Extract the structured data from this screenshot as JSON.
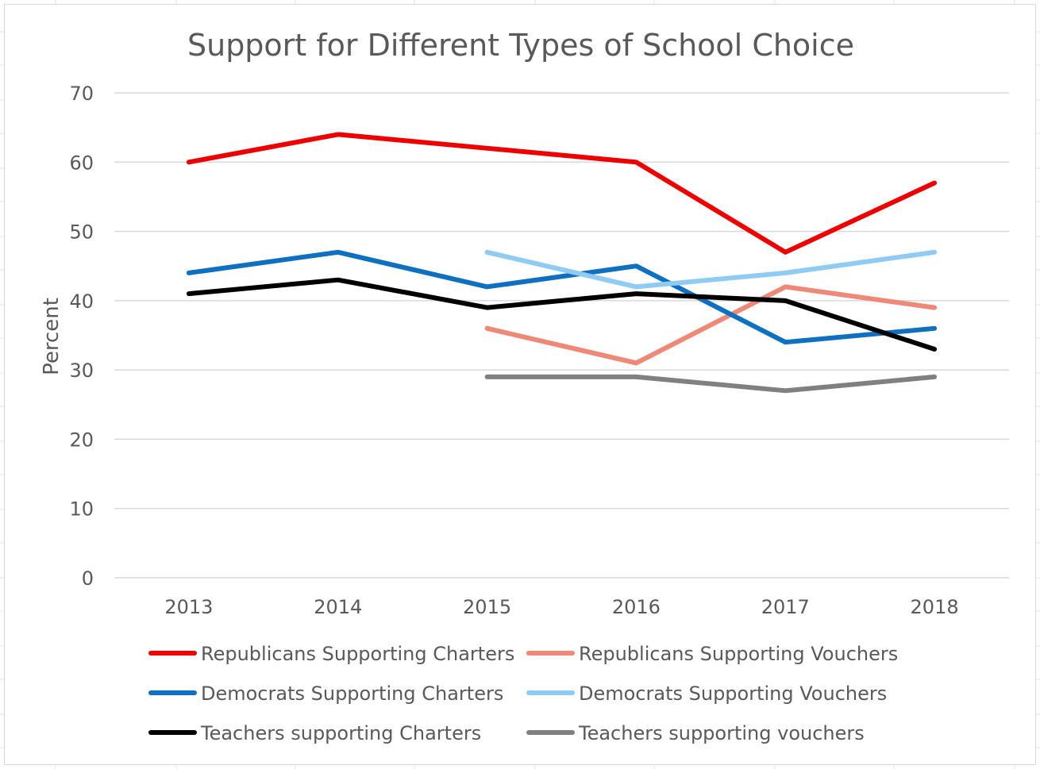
{
  "chart_data": {
    "type": "line",
    "title": "Support for Different Types of School Choice",
    "xlabel": "",
    "ylabel": "Percent",
    "x": [
      "2013",
      "2014",
      "2015",
      "2016",
      "2017",
      "2018"
    ],
    "ylim": [
      0,
      70
    ],
    "yticks": [
      0,
      10,
      20,
      30,
      40,
      50,
      60,
      70
    ],
    "grid": "horizontal",
    "legend_position": "bottom",
    "series": [
      {
        "name": "Republicans Supporting Charters",
        "color": "#ee0000",
        "values": [
          60,
          64,
          62,
          60,
          47,
          57
        ]
      },
      {
        "name": "Republicans Supporting Vouchers",
        "color": "#f08878",
        "values": [
          null,
          null,
          36,
          31,
          42,
          39
        ]
      },
      {
        "name": "Democrats Supporting Charters",
        "color": "#0f6fc0",
        "values": [
          44,
          47,
          42,
          45,
          34,
          36
        ]
      },
      {
        "name": "Democrats Supporting Vouchers",
        "color": "#8fcbf5",
        "values": [
          null,
          null,
          47,
          42,
          44,
          47
        ]
      },
      {
        "name": "Teachers supporting Charters",
        "color": "#000000",
        "values": [
          41,
          43,
          39,
          41,
          40,
          33
        ]
      },
      {
        "name": "Teachers supporting vouchers",
        "color": "#808080",
        "values": [
          null,
          null,
          29,
          29,
          27,
          29
        ]
      }
    ]
  }
}
